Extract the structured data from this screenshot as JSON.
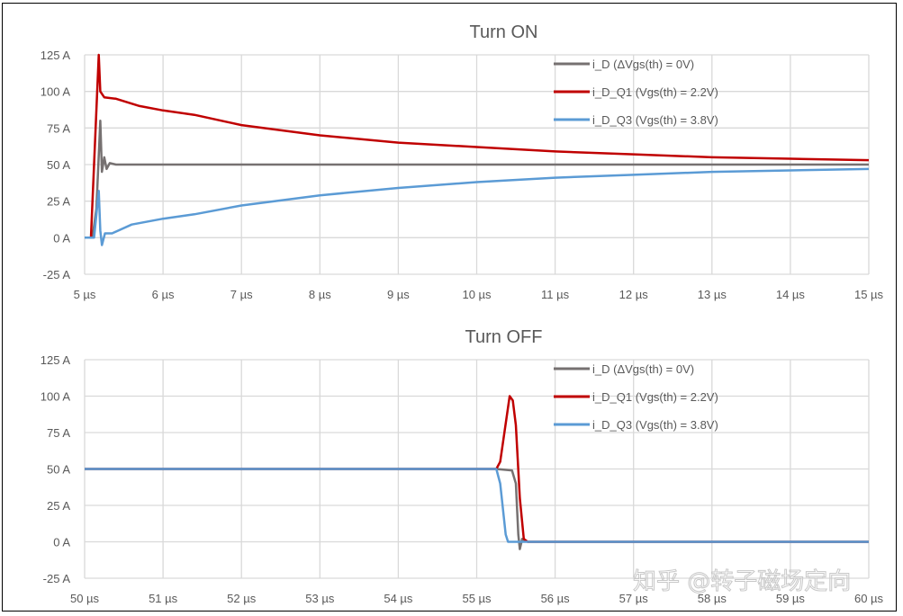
{
  "watermark": "知乎 @转子磁场定向",
  "chart_data": [
    {
      "type": "line",
      "title": "Turn ON",
      "xlabel": "",
      "ylabel": "",
      "x_ticks": [
        "5 µs",
        "6 µs",
        "7 µs",
        "8 µs",
        "9 µs",
        "10 µs",
        "11 µs",
        "12 µs",
        "13 µs",
        "14 µs",
        "15 µs"
      ],
      "y_ticks": [
        "125 A",
        "100 A",
        "75 A",
        "50 A",
        "25 A",
        "0 A",
        "-25 A"
      ],
      "xlim": [
        5,
        15
      ],
      "ylim": [
        -25,
        125
      ],
      "x_unit": "µs",
      "y_unit": "A",
      "grid": true,
      "legend_position": "top-right inside",
      "series": [
        {
          "name": "i_D (ΔVgs(th) = 0V)",
          "color": "#767171",
          "points": [
            [
              5,
              0
            ],
            [
              5.1,
              0
            ],
            [
              5.15,
              20
            ],
            [
              5.2,
              80
            ],
            [
              5.22,
              45
            ],
            [
              5.25,
              55
            ],
            [
              5.28,
              47
            ],
            [
              5.32,
              51
            ],
            [
              5.4,
              50
            ],
            [
              6,
              50
            ],
            [
              8,
              50
            ],
            [
              10,
              50
            ],
            [
              12,
              50
            ],
            [
              15,
              50
            ]
          ]
        },
        {
          "name": "i_D_Q1 (Vgs(th) = 2.2V)",
          "color": "#c00000",
          "points": [
            [
              5,
              0
            ],
            [
              5.08,
              0
            ],
            [
              5.18,
              125
            ],
            [
              5.2,
              100
            ],
            [
              5.25,
              96
            ],
            [
              5.4,
              95
            ],
            [
              5.7,
              90
            ],
            [
              6,
              87
            ],
            [
              6.4,
              84
            ],
            [
              7,
              77
            ],
            [
              8,
              70
            ],
            [
              9,
              65
            ],
            [
              10,
              62
            ],
            [
              11,
              59
            ],
            [
              12,
              57
            ],
            [
              13,
              55
            ],
            [
              14,
              54
            ],
            [
              15,
              53
            ]
          ]
        },
        {
          "name": "i_D_Q3 (Vgs(th) = 3.8V)",
          "color": "#5b9bd5",
          "points": [
            [
              5,
              0
            ],
            [
              5.12,
              0
            ],
            [
              5.18,
              32
            ],
            [
              5.2,
              5
            ],
            [
              5.22,
              -5
            ],
            [
              5.26,
              3
            ],
            [
              5.35,
              3
            ],
            [
              5.6,
              9
            ],
            [
              6,
              13
            ],
            [
              6.4,
              16
            ],
            [
              7,
              22
            ],
            [
              8,
              29
            ],
            [
              9,
              34
            ],
            [
              10,
              38
            ],
            [
              11,
              41
            ],
            [
              12,
              43
            ],
            [
              13,
              45
            ],
            [
              14,
              46
            ],
            [
              15,
              47
            ]
          ]
        }
      ]
    },
    {
      "type": "line",
      "title": "Turn OFF",
      "xlabel": "",
      "ylabel": "",
      "x_ticks": [
        "50 µs",
        "51 µs",
        "52 µs",
        "53 µs",
        "54 µs",
        "55 µs",
        "56 µs",
        "57 µs",
        "58 µs",
        "59 µs",
        "60 µs"
      ],
      "y_ticks": [
        "125 A",
        "100 A",
        "75 A",
        "50 A",
        "25 A",
        "0 A",
        "-25 A"
      ],
      "xlim": [
        50,
        60
      ],
      "ylim": [
        -25,
        125
      ],
      "x_unit": "µs",
      "y_unit": "A",
      "grid": true,
      "legend_position": "top-right inside",
      "series": [
        {
          "name": "i_D (ΔVgs(th) = 0V)",
          "color": "#767171",
          "points": [
            [
              50,
              50
            ],
            [
              55.25,
              50
            ],
            [
              55.45,
              49
            ],
            [
              55.5,
              40
            ],
            [
              55.53,
              5
            ],
            [
              55.55,
              -5
            ],
            [
              55.58,
              2
            ],
            [
              55.65,
              0
            ],
            [
              60,
              0
            ]
          ]
        },
        {
          "name": "i_D_Q1 (Vgs(th) = 2.2V)",
          "color": "#c00000",
          "points": [
            [
              50,
              50
            ],
            [
              55.25,
              50
            ],
            [
              55.3,
              55
            ],
            [
              55.38,
              85
            ],
            [
              55.42,
              100
            ],
            [
              55.46,
              97
            ],
            [
              55.5,
              80
            ],
            [
              55.55,
              30
            ],
            [
              55.6,
              2
            ],
            [
              55.65,
              0
            ],
            [
              60,
              0
            ]
          ]
        },
        {
          "name": "i_D_Q3 (Vgs(th) = 3.8V)",
          "color": "#5b9bd5",
          "points": [
            [
              50,
              50
            ],
            [
              55.25,
              50
            ],
            [
              55.3,
              40
            ],
            [
              55.37,
              5
            ],
            [
              55.4,
              0
            ],
            [
              55.55,
              0
            ],
            [
              60,
              0
            ]
          ]
        }
      ]
    }
  ]
}
